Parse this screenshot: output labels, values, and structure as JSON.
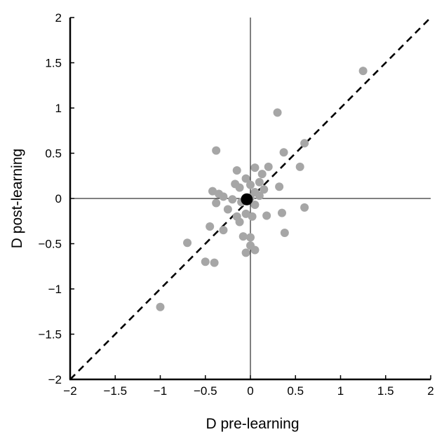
{
  "chart_data": {
    "type": "scatter",
    "xlabel": "D pre-learning",
    "ylabel": "D post-learning",
    "xlim": [
      -2,
      2
    ],
    "ylim": [
      -2,
      2
    ],
    "xticks": [
      -2,
      -1.5,
      -1,
      -0.5,
      0,
      0.5,
      1,
      1.5,
      2
    ],
    "yticks": [
      -2,
      -1.5,
      -1,
      -0.5,
      0,
      0.5,
      1,
      1.5,
      2
    ],
    "xtick_labels": [
      "−2",
      "−1.5",
      "−1",
      "−0.5",
      "0",
      "0.5",
      "1",
      "1.5",
      "2"
    ],
    "ytick_labels": [
      "−2",
      "−1.5",
      "−1",
      "−0.5",
      "0",
      "0.5",
      "1",
      "1.5",
      "2"
    ],
    "grid": false,
    "reference_lines": [
      "x = 0",
      "y = 0",
      "y = x (dashed)"
    ],
    "colors": {
      "points": "#a6a6a6",
      "mean_point": "#000000",
      "axes": "#000000"
    },
    "series": [
      {
        "points": [
          [
            1.25,
            1.41
          ],
          [
            0.3,
            0.95
          ],
          [
            0.6,
            0.61
          ],
          [
            -0.38,
            0.53
          ],
          [
            0.37,
            0.51
          ],
          [
            0.55,
            0.35
          ],
          [
            0.2,
            0.35
          ],
          [
            0.05,
            0.34
          ],
          [
            -0.15,
            0.31
          ],
          [
            0.13,
            0.27
          ],
          [
            -0.05,
            0.22
          ],
          [
            0.1,
            0.18
          ],
          [
            -0.17,
            0.16
          ],
          [
            0.0,
            0.15
          ],
          [
            0.32,
            0.13
          ],
          [
            -0.12,
            0.12
          ],
          [
            0.15,
            0.1
          ],
          [
            -0.42,
            0.08
          ],
          [
            0.05,
            0.07
          ],
          [
            -0.35,
            0.05
          ],
          [
            0.1,
            0.03
          ],
          [
            -0.3,
            0.02
          ],
          [
            0.0,
            0.01
          ],
          [
            -0.2,
            -0.01
          ],
          [
            -0.38,
            -0.05
          ],
          [
            -0.1,
            -0.04
          ],
          [
            0.05,
            -0.07
          ],
          [
            -0.25,
            -0.12
          ],
          [
            0.35,
            -0.16
          ],
          [
            0.6,
            -0.1
          ],
          [
            -0.05,
            -0.17
          ],
          [
            0.02,
            -0.2
          ],
          [
            0.18,
            -0.19
          ],
          [
            -0.15,
            -0.2
          ],
          [
            -0.12,
            -0.26
          ],
          [
            -0.45,
            -0.31
          ],
          [
            -0.3,
            -0.35
          ],
          [
            0.38,
            -0.38
          ],
          [
            -0.08,
            -0.42
          ],
          [
            0.0,
            -0.43
          ],
          [
            -0.7,
            -0.49
          ],
          [
            0.0,
            -0.52
          ],
          [
            0.05,
            -0.57
          ],
          [
            -0.05,
            -0.6
          ],
          [
            -0.5,
            -0.7
          ],
          [
            -0.4,
            -0.71
          ],
          [
            -1.0,
            -1.2
          ]
        ]
      },
      {
        "points": [
          [
            -0.04,
            -0.01
          ]
        ]
      }
    ]
  }
}
